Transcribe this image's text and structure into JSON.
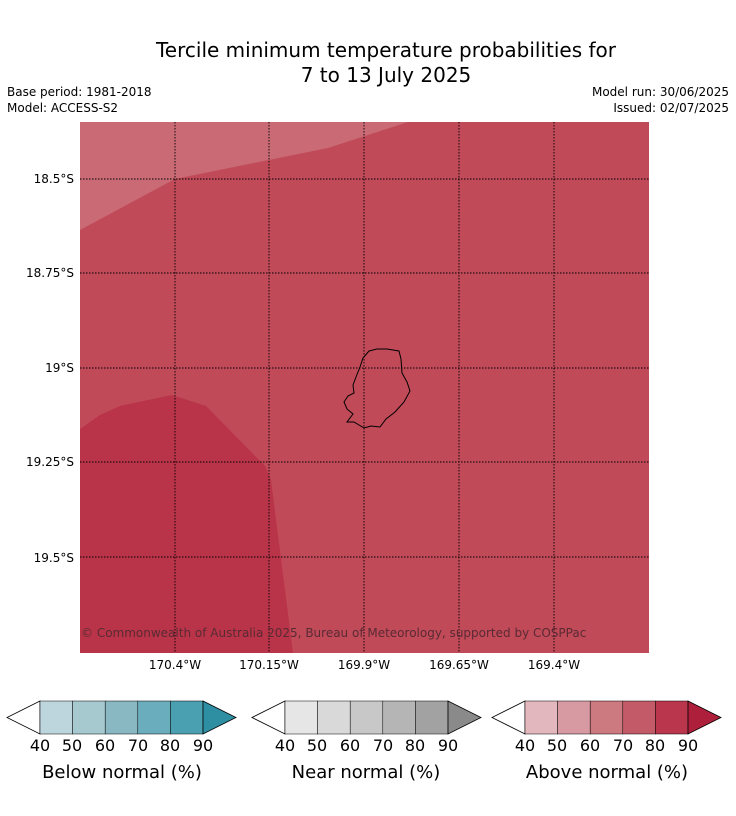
{
  "title": {
    "line1": "Tercile minimum temperature probabilities for",
    "line2": "7 to 13 July 2025"
  },
  "meta": {
    "base_period": "Base period: 1981-2018",
    "model": "Model: ACCESS-S2",
    "model_run": "Model run: 30/06/2025",
    "issued": "Issued: 02/07/2025"
  },
  "map": {
    "copyright": "© Commonwealth of Australia 2025, Bureau of Meteorology, supported by COSPPac",
    "lat_labels": [
      "18.5°S",
      "18.75°S",
      "19°S",
      "19.25°S",
      "19.5°S"
    ],
    "lon_labels": [
      "170.4°W",
      "170.15°W",
      "169.9°W",
      "169.65°W",
      "169.4°W"
    ],
    "regions": [
      {
        "category": "Above normal",
        "range": "60-70",
        "color": "#c96a74"
      },
      {
        "category": "Above normal",
        "range": "70-80",
        "color": "#c04a58"
      },
      {
        "category": "Above normal",
        "range": "80-90",
        "color": "#b93448"
      }
    ],
    "grid": true
  },
  "colorbars": [
    {
      "label": "Below normal (%)",
      "ticks": [
        "40",
        "50",
        "60",
        "70",
        "80",
        "90"
      ],
      "colors": [
        "#bdd5dc",
        "#a6c8cf",
        "#89b7c2",
        "#6aaebd",
        "#4aa0b0",
        "#2e8fa3"
      ]
    },
    {
      "label": "Near normal (%)",
      "ticks": [
        "40",
        "50",
        "60",
        "70",
        "80",
        "90"
      ],
      "colors": [
        "#e6e6e6",
        "#d9d9d9",
        "#c8c8c8",
        "#b5b5b5",
        "#a2a2a2",
        "#8a8a8a"
      ]
    },
    {
      "label": "Above normal (%)",
      "ticks": [
        "40",
        "50",
        "60",
        "70",
        "80",
        "90"
      ],
      "colors": [
        "#e2b8be",
        "#d79aa2",
        "#cd7980",
        "#c25a68",
        "#ba364c",
        "#ae1f3b"
      ]
    }
  ]
}
